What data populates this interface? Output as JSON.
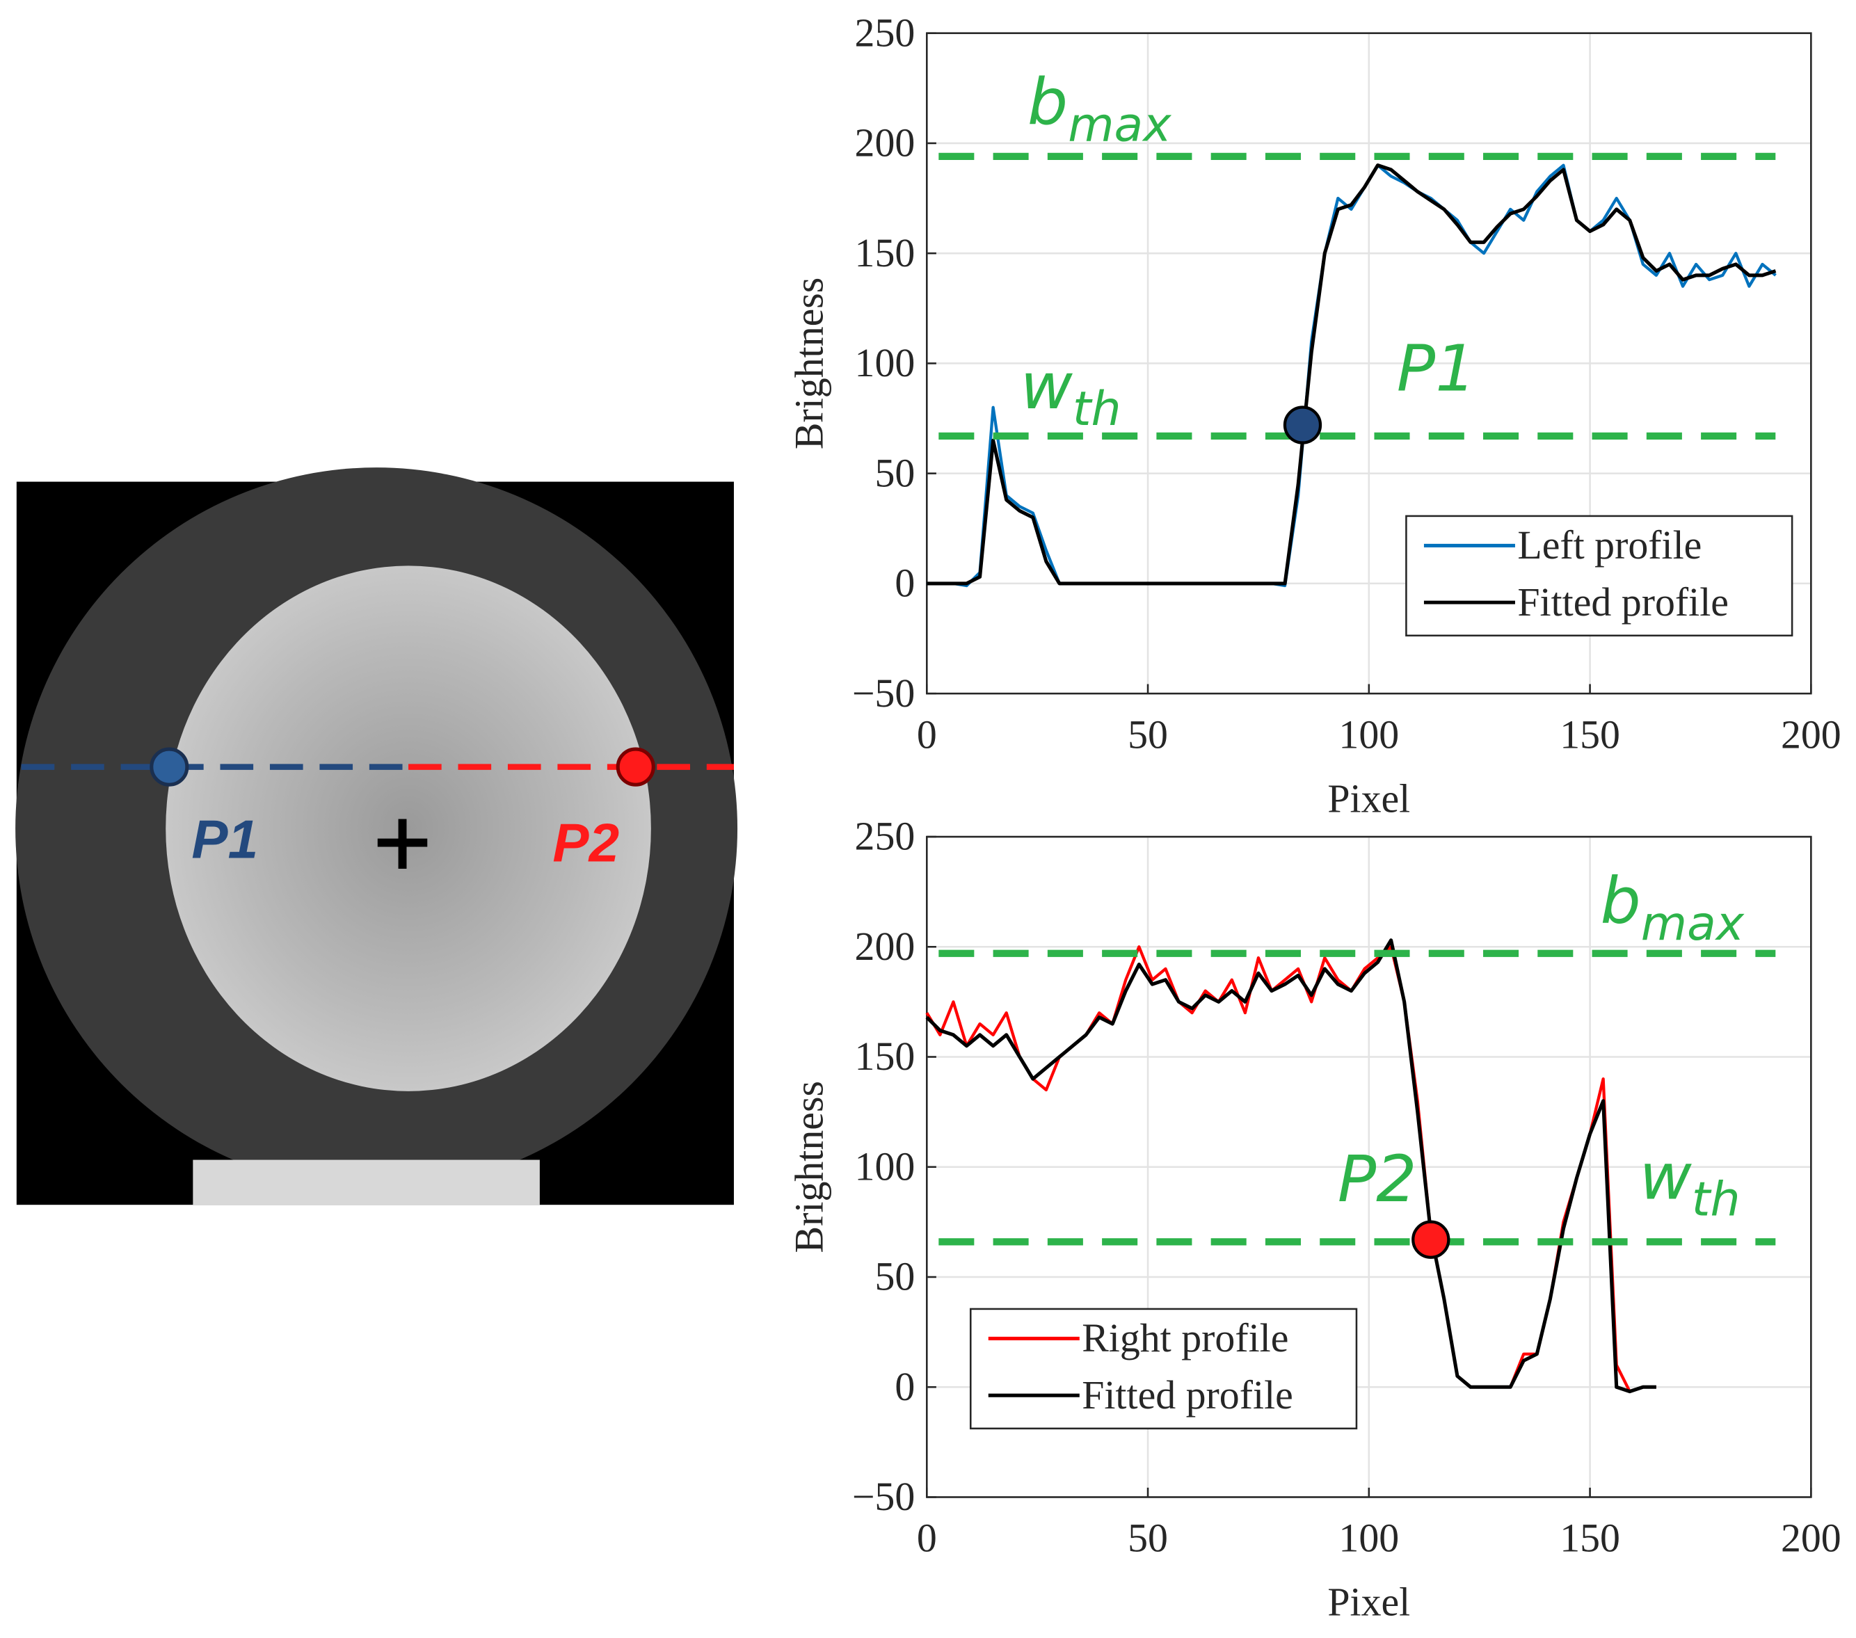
{
  "image": {
    "labels": [
      {
        "text": "P1",
        "color": "#23497e"
      },
      {
        "text": "P2",
        "color": "#ff1a1a"
      }
    ]
  },
  "chart_data": [
    {
      "type": "line",
      "xlabel": "Pixel",
      "ylabel": "Brightness",
      "xlim": [
        0,
        200
      ],
      "xticks": [
        0,
        50,
        100,
        150,
        200
      ],
      "ylim": [
        -50,
        250
      ],
      "yticks": [
        {
          "value": -50,
          "label": "−50"
        },
        0,
        50,
        100,
        150,
        200,
        250
      ],
      "grid": true,
      "legend": "lower right",
      "x": [
        0,
        3,
        6,
        9,
        12,
        15,
        18,
        21,
        24,
        27,
        30,
        33,
        36,
        39,
        42,
        45,
        48,
        51,
        54,
        57,
        60,
        63,
        66,
        69,
        72,
        75,
        78,
        81,
        84,
        87,
        90,
        93,
        96,
        99,
        102,
        105,
        108,
        111,
        114,
        117,
        120,
        123,
        126,
        129,
        132,
        135,
        138,
        141,
        144,
        147,
        150,
        153,
        156,
        159,
        162,
        165,
        168,
        171,
        174,
        177,
        180,
        183,
        186,
        189,
        192
      ],
      "series": [
        {
          "name": "Left profile",
          "color": "#0072bd",
          "values": [
            0,
            0,
            0,
            -1,
            5,
            80,
            40,
            35,
            32,
            15,
            0,
            0,
            0,
            0,
            0,
            0,
            0,
            0,
            0,
            0,
            0,
            0,
            0,
            0,
            0,
            0,
            0,
            -1,
            40,
            110,
            150,
            175,
            170,
            180,
            190,
            185,
            182,
            178,
            175,
            170,
            165,
            155,
            150,
            160,
            170,
            165,
            178,
            185,
            190,
            165,
            160,
            165,
            175,
            165,
            145,
            140,
            150,
            135,
            145,
            138,
            140,
            150,
            135,
            145,
            140
          ]
        },
        {
          "name": "Fitted profile",
          "color": "#000000",
          "values": [
            0,
            0,
            0,
            0,
            3,
            65,
            38,
            33,
            30,
            10,
            0,
            0,
            0,
            0,
            0,
            0,
            0,
            0,
            0,
            0,
            0,
            0,
            0,
            0,
            0,
            0,
            0,
            0,
            45,
            105,
            150,
            170,
            172,
            180,
            190,
            188,
            183,
            178,
            174,
            170,
            163,
            155,
            155,
            162,
            168,
            170,
            176,
            183,
            188,
            165,
            160,
            163,
            170,
            165,
            148,
            142,
            145,
            138,
            140,
            140,
            143,
            145,
            140,
            140,
            142
          ]
        }
      ],
      "hlines": [
        {
          "base": "b",
          "sub": "max",
          "value": 194,
          "color": "#2db34a"
        },
        {
          "base": "w",
          "sub": "th",
          "value": 67,
          "color": "#2db34a"
        }
      ],
      "points": [
        {
          "label": "P1",
          "x": 85,
          "y": 72,
          "color": "#23497e"
        }
      ]
    },
    {
      "type": "line",
      "xlabel": "Pixel",
      "ylabel": "Brightness",
      "xlim": [
        0,
        200
      ],
      "xticks": [
        0,
        50,
        100,
        150,
        200
      ],
      "ylim": [
        -50,
        250
      ],
      "yticks": [
        {
          "value": -50,
          "label": "−50"
        },
        0,
        50,
        100,
        150,
        200,
        250
      ],
      "grid": true,
      "legend": "lower left",
      "x": [
        0,
        3,
        6,
        9,
        12,
        15,
        18,
        21,
        24,
        27,
        30,
        33,
        36,
        39,
        42,
        45,
        48,
        51,
        54,
        57,
        60,
        63,
        66,
        69,
        72,
        75,
        78,
        81,
        84,
        87,
        90,
        93,
        96,
        99,
        102,
        105,
        108,
        111,
        114,
        117,
        120,
        123,
        126,
        129,
        132,
        135,
        138,
        141,
        144,
        147,
        150,
        153,
        156,
        159,
        162,
        165
      ],
      "series": [
        {
          "name": "Right profile",
          "color": "#ff0000",
          "values": [
            170,
            160,
            175,
            155,
            165,
            160,
            170,
            150,
            140,
            135,
            150,
            155,
            160,
            170,
            165,
            185,
            200,
            185,
            190,
            175,
            170,
            180,
            175,
            185,
            170,
            195,
            180,
            185,
            190,
            175,
            195,
            185,
            180,
            190,
            195,
            200,
            175,
            130,
            70,
            40,
            5,
            0,
            0,
            0,
            0,
            15,
            15,
            40,
            75,
            95,
            115,
            140,
            10,
            -2,
            0,
            0
          ]
        },
        {
          "name": "Fitted profile",
          "color": "#000000",
          "values": [
            168,
            162,
            160,
            155,
            160,
            155,
            160,
            150,
            140,
            145,
            150,
            155,
            160,
            168,
            165,
            180,
            192,
            183,
            185,
            175,
            172,
            178,
            175,
            180,
            175,
            188,
            180,
            183,
            187,
            178,
            190,
            183,
            180,
            188,
            193,
            203,
            175,
            125,
            70,
            40,
            5,
            0,
            0,
            0,
            0,
            12,
            15,
            40,
            72,
            95,
            115,
            130,
            0,
            -2,
            0,
            0
          ]
        }
      ],
      "hlines": [
        {
          "base": "b",
          "sub": "max",
          "value": 197,
          "color": "#2db34a"
        },
        {
          "base": "w",
          "sub": "th",
          "value": 66,
          "color": "#2db34a"
        }
      ],
      "points": [
        {
          "label": "P2",
          "x": 114,
          "y": 67,
          "color": "#ff1a1a"
        }
      ]
    }
  ]
}
